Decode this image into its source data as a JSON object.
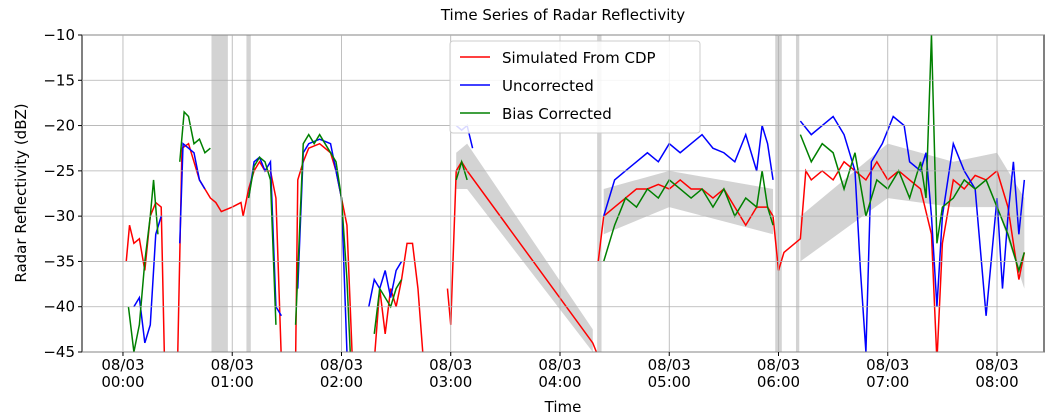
{
  "chart_data": {
    "type": "line",
    "title": "Time Series of Radar Reflectivity",
    "xlabel": "Time",
    "ylabel": "Radar Reflectivity (dBZ)",
    "xlim": [
      -0.375,
      8.43
    ],
    "ylim": [
      -45,
      -10
    ],
    "yticks": [
      {
        "value": -10,
        "label": "−10"
      },
      {
        "value": -15,
        "label": "−15"
      },
      {
        "value": -20,
        "label": "−20"
      },
      {
        "value": -25,
        "label": "−25"
      },
      {
        "value": -30,
        "label": "−30"
      },
      {
        "value": -35,
        "label": "−35"
      },
      {
        "value": -40,
        "label": "−40"
      },
      {
        "value": -45,
        "label": "−45"
      }
    ],
    "xticks": [
      {
        "value": 0,
        "label": "08/03\n00:00"
      },
      {
        "value": 1,
        "label": "08/03\n01:00"
      },
      {
        "value": 2,
        "label": "08/03\n02:00"
      },
      {
        "value": 3,
        "label": "08/03\n03:00"
      },
      {
        "value": 4,
        "label": "08/03\n04:00"
      },
      {
        "value": 5,
        "label": "08/03\n05:00"
      },
      {
        "value": 6,
        "label": "08/03\n06:00"
      },
      {
        "value": 7,
        "label": "08/03\n07:00"
      },
      {
        "value": 8,
        "label": "08/03\n08:00"
      }
    ],
    "grid": true,
    "legend": "upper center",
    "shading": {
      "color": "#d3d3d3",
      "spans": [
        [
          0.81,
          0.96
        ],
        [
          1.13,
          1.17
        ],
        [
          4.34,
          4.38
        ],
        [
          5.97,
          6.03
        ],
        [
          6.16,
          6.19
        ]
      ],
      "x": [
        3.05,
        3.15,
        4.3,
        null,
        4.4,
        5.0,
        5.95,
        null,
        6.2,
        7.0,
        7.6,
        8.0,
        8.25
      ],
      "lower": [
        -27,
        -27,
        -45,
        null,
        -32,
        -29,
        -32,
        null,
        -35,
        -28,
        -29,
        -29,
        -38
      ],
      "upper": [
        -23,
        -22,
        -42.5,
        null,
        -27,
        -25,
        -27,
        null,
        -30,
        -22,
        -24,
        -23,
        -28
      ]
    },
    "series": [
      {
        "name": "Simulated From CDP",
        "color": "#ff0000",
        "x": [
          0.03,
          0.06,
          0.1,
          0.15,
          0.2,
          0.25,
          0.3,
          0.35,
          0.38,
          null,
          0.5,
          0.54,
          0.6,
          0.65,
          0.7,
          0.75,
          0.8,
          0.85,
          0.9,
          1.0,
          1.08,
          1.1,
          1.15,
          1.2,
          1.25,
          1.3,
          1.35,
          1.4,
          1.45,
          null,
          1.58,
          1.6,
          1.65,
          1.7,
          1.8,
          1.9,
          1.95,
          2.0,
          2.05,
          2.1,
          null,
          2.3,
          2.35,
          2.4,
          2.45,
          2.5,
          2.55,
          2.6,
          2.65,
          2.7,
          2.75,
          null,
          2.97,
          3.0,
          3.05,
          3.1,
          3.15,
          4.3,
          4.35,
          null,
          4.35,
          4.4,
          4.5,
          4.6,
          4.7,
          4.8,
          4.9,
          5.0,
          5.1,
          5.2,
          5.3,
          5.4,
          5.5,
          5.6,
          5.7,
          5.8,
          5.9,
          5.95,
          6.0,
          6.05,
          6.2,
          6.25,
          6.3,
          6.4,
          6.5,
          6.6,
          6.7,
          6.8,
          6.9,
          7.0,
          7.1,
          7.2,
          7.3,
          7.4,
          7.45,
          7.5,
          7.6,
          7.7,
          7.8,
          7.9,
          8.0,
          8.1,
          8.15,
          8.2,
          8.25
        ],
        "values": [
          -35,
          -31,
          -33,
          -32.5,
          -36,
          -30,
          -28.5,
          -29,
          -46,
          null,
          -46,
          -22.5,
          -22,
          -24,
          -26,
          -27,
          -28,
          -28.5,
          -29.5,
          -29,
          -28.5,
          -30,
          -27,
          -25,
          -24,
          -25,
          -25,
          -28,
          -46,
          null,
          -46,
          -26,
          -24,
          -22.5,
          -22,
          -23,
          -25,
          -28,
          -31,
          -46,
          null,
          -46,
          -38,
          -43,
          -38,
          -40,
          -37,
          -33,
          -33,
          -38,
          -46,
          null,
          -38,
          -42,
          -25,
          -24,
          -25,
          -44,
          -45.5,
          null,
          -35,
          -30,
          -29,
          -28,
          -27,
          -27,
          -26.5,
          -27,
          -26,
          -27,
          -27,
          -28,
          -27,
          -29,
          -31,
          -29,
          -29,
          -30,
          -36,
          -34,
          -32.5,
          -25,
          -26,
          -25,
          -26,
          -24,
          -25,
          -26,
          -24,
          -26,
          -25,
          -26,
          -27,
          -32,
          -46,
          -33,
          -26,
          -27,
          -25.5,
          -26,
          -25,
          -29,
          -33,
          -37,
          -34
        ]
      },
      {
        "name": "Uncorrected",
        "color": "#0000ff",
        "x": [
          0.1,
          0.15,
          0.2,
          0.25,
          0.3,
          0.35,
          null,
          0.52,
          0.55,
          0.6,
          0.65,
          0.7,
          0.75,
          null,
          1.15,
          1.2,
          1.25,
          1.3,
          1.35,
          1.4,
          1.45,
          null,
          1.6,
          1.65,
          1.7,
          1.8,
          1.9,
          2.0,
          2.05,
          null,
          2.25,
          2.3,
          2.35,
          2.4,
          2.45,
          2.5,
          2.55,
          null,
          3.05,
          3.1,
          3.15,
          3.2,
          null,
          4.4,
          4.5,
          4.6,
          4.7,
          4.8,
          4.9,
          5.0,
          5.1,
          5.2,
          5.3,
          5.4,
          5.5,
          5.6,
          5.7,
          5.8,
          5.85,
          5.9,
          5.95,
          null,
          6.2,
          6.3,
          6.4,
          6.5,
          6.6,
          6.7,
          6.75,
          6.8,
          6.85,
          6.95,
          7.05,
          7.15,
          7.2,
          7.3,
          7.35,
          7.4,
          7.45,
          7.5,
          7.6,
          7.7,
          7.8,
          7.9,
          8.0,
          8.05,
          8.1,
          8.15,
          8.2,
          8.25
        ],
        "values": [
          -40,
          -39,
          -44,
          -42,
          -32,
          -30,
          null,
          -33,
          -22,
          -22.5,
          -23,
          -26,
          -27,
          null,
          -28,
          -24,
          -23.5,
          -25,
          -24,
          -40,
          -41,
          null,
          -38,
          -23,
          -22,
          -21.5,
          -22,
          -28,
          -45,
          null,
          -40,
          -37,
          -38,
          -36,
          -39,
          -36,
          -35,
          null,
          -20,
          -20.5,
          -20,
          -22.5,
          null,
          -30,
          -26,
          -25,
          -24,
          -23,
          -24,
          -22,
          -23,
          -22,
          -21,
          -22.5,
          -23,
          -24,
          -21,
          -25,
          -20,
          -22,
          -26,
          null,
          -19.5,
          -21,
          -20,
          -19,
          -21,
          -25,
          -36,
          -45,
          -24,
          -22,
          -19,
          -20,
          -24,
          -25,
          -23,
          -30,
          -40,
          -30,
          -22,
          -25,
          -27,
          -41,
          -28,
          -38,
          -30,
          -24,
          -32,
          -26
        ]
      },
      {
        "name": "Bias Corrected",
        "color": "#008000",
        "x": [
          0.05,
          0.1,
          0.15,
          0.2,
          0.25,
          0.28,
          0.32,
          null,
          0.52,
          0.56,
          0.6,
          0.65,
          0.7,
          0.75,
          0.8,
          null,
          1.15,
          1.2,
          1.25,
          1.3,
          1.35,
          1.4,
          null,
          1.58,
          1.65,
          1.7,
          1.75,
          1.8,
          1.85,
          1.95,
          2.0,
          2.05,
          2.08,
          null,
          2.3,
          2.35,
          2.45,
          2.5,
          2.55,
          null,
          3.05,
          3.1,
          3.15,
          null,
          4.4,
          4.5,
          4.6,
          4.7,
          4.8,
          4.9,
          5.0,
          5.1,
          5.2,
          5.3,
          5.4,
          5.5,
          5.6,
          5.7,
          5.8,
          5.85,
          5.9,
          5.95,
          null,
          6.2,
          6.3,
          6.4,
          6.5,
          6.6,
          6.7,
          6.8,
          6.9,
          7.0,
          7.1,
          7.2,
          7.3,
          7.35,
          7.4,
          7.45,
          7.5,
          7.6,
          7.7,
          7.8,
          7.9,
          8.0,
          8.1,
          8.2,
          8.25
        ],
        "values": [
          -40,
          -45,
          -42,
          -35,
          -30,
          -26,
          -32,
          null,
          -24,
          -18.5,
          -19,
          -22,
          -21.5,
          -23,
          -22.5,
          null,
          -28,
          -24.5,
          -23.5,
          -24,
          -26,
          -42,
          null,
          -42,
          -22,
          -21,
          -22,
          -21,
          -22,
          -24,
          -28,
          -37,
          -45,
          null,
          -43,
          -38,
          -40,
          -38,
          -37,
          null,
          -26,
          -24,
          -26,
          null,
          -35,
          -31,
          -28,
          -29,
          -27,
          -28,
          -26,
          -27,
          -28,
          -27,
          -29,
          -27,
          -30,
          -28,
          -29,
          -25,
          -29,
          -31,
          null,
          -21,
          -24,
          -22,
          -23,
          -27,
          -23,
          -30,
          -26,
          -27,
          -25,
          -28,
          -24,
          -28,
          -10,
          -33,
          -29,
          -28,
          -26,
          -27,
          -26,
          -29,
          -32,
          -36,
          -34
        ]
      }
    ]
  }
}
